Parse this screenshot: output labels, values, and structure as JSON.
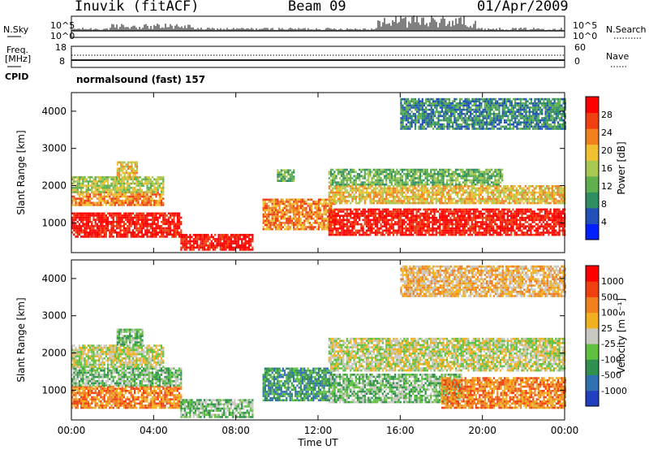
{
  "header": {
    "station": "Inuvik (fitACF)",
    "beam": "Beam 09",
    "date": "01/Apr/2009"
  },
  "top_panels": {
    "nsky_label": "N.Sky",
    "nsearch_label": "N.Search",
    "freq_label_line1": "Freq.",
    "freq_label_line2": "[MHz]",
    "nave_label": "Nave",
    "cpid_label": "CPID",
    "program": "normalsound (fast) 157",
    "noise_ticks_left": [
      "10^5",
      "10^0"
    ],
    "noise_ticks_right": [
      "10^5",
      "10^0"
    ],
    "freq_ticks": [
      "18",
      "8"
    ],
    "nave_ticks": [
      "60",
      "0"
    ]
  },
  "chart_data": [
    {
      "type": "heatmap",
      "title": "",
      "xlabel": "Time UT",
      "ylabel": "Slant Range [km]",
      "x_ticks": [
        "00:00",
        "04:00",
        "08:00",
        "12:00",
        "16:00",
        "20:00",
        "00:00"
      ],
      "y_ticks": [
        1000,
        2000,
        3000,
        4000
      ],
      "xlim_hours": [
        0,
        24
      ],
      "ylim_km": [
        200,
        4500
      ],
      "colorbar": {
        "label": "Power [dB]",
        "tick_labels": [
          "28",
          "24",
          "20",
          "16",
          "12",
          "8",
          "4"
        ],
        "colors": [
          "#0020ff",
          "#2050b8",
          "#2f8f60",
          "#60b050",
          "#a8c850",
          "#f0c030",
          "#f08020",
          "#f04010",
          "#ff0000"
        ]
      },
      "regions": [
        {
          "t0": 0.0,
          "t1": 5.3,
          "r0": 600,
          "r1": 1250,
          "level": 8
        },
        {
          "t0": 0.0,
          "t1": 4.5,
          "r0": 1450,
          "r1": 1800,
          "level": 6
        },
        {
          "t0": 0.0,
          "t1": 4.5,
          "r0": 1800,
          "r1": 2200,
          "level": 4
        },
        {
          "t0": 2.2,
          "t1": 3.2,
          "r0": 2200,
          "r1": 2650,
          "level": 5
        },
        {
          "t0": 5.3,
          "t1": 8.8,
          "r0": 250,
          "r1": 700,
          "level": 8
        },
        {
          "t0": 9.3,
          "t1": 12.8,
          "r0": 800,
          "r1": 1600,
          "level": 6
        },
        {
          "t0": 10.0,
          "t1": 10.8,
          "r0": 2100,
          "r1": 2400,
          "level": 3
        },
        {
          "t0": 12.5,
          "t1": 24.0,
          "r0": 650,
          "r1": 1350,
          "level": 8
        },
        {
          "t0": 12.5,
          "t1": 24.0,
          "r0": 1500,
          "r1": 2000,
          "level": 5
        },
        {
          "t0": 12.5,
          "t1": 21.0,
          "r0": 2000,
          "r1": 2400,
          "level": 3
        },
        {
          "t0": 16.0,
          "t1": 24.0,
          "r0": 3500,
          "r1": 4300,
          "level": 2
        }
      ]
    },
    {
      "type": "heatmap",
      "title": "",
      "xlabel": "Time UT",
      "ylabel": "Slant Range [km]",
      "x_ticks": [
        "00:00",
        "04:00",
        "08:00",
        "12:00",
        "16:00",
        "20:00",
        "00:00"
      ],
      "y_ticks": [
        1000,
        2000,
        3000,
        4000
      ],
      "xlim_hours": [
        0,
        24
      ],
      "ylim_km": [
        200,
        4500
      ],
      "colorbar": {
        "label": "Velocity [m s⁻¹]",
        "tick_labels": [
          "1000",
          "500",
          "100",
          "25",
          "-25",
          "-100",
          "-500",
          "-1000"
        ],
        "colors": [
          "#2040c0",
          "#3070b0",
          "#309050",
          "#60c040",
          "#c8c8c0",
          "#f0b020",
          "#f08020",
          "#f04010",
          "#ff0000"
        ]
      },
      "regions": [
        {
          "t0": 0.0,
          "t1": 5.3,
          "r0": 500,
          "r1": 1100,
          "level": 6
        },
        {
          "t0": 0.0,
          "t1": 5.3,
          "r0": 1100,
          "r1": 1600,
          "level": 3
        },
        {
          "t0": 0.0,
          "t1": 4.5,
          "r0": 1600,
          "r1": 2200,
          "level": 4
        },
        {
          "t0": 2.2,
          "t1": 3.5,
          "r0": 2200,
          "r1": 2650,
          "level": 3
        },
        {
          "t0": 5.3,
          "t1": 8.8,
          "r0": 250,
          "r1": 750,
          "level": 3
        },
        {
          "t0": 9.3,
          "t1": 12.8,
          "r0": 700,
          "r1": 1600,
          "level": 2
        },
        {
          "t0": 12.5,
          "t1": 19.0,
          "r0": 650,
          "r1": 1400,
          "level": 3
        },
        {
          "t0": 18.0,
          "t1": 24.0,
          "r0": 500,
          "r1": 1300,
          "level": 6
        },
        {
          "t0": 12.5,
          "t1": 24.0,
          "r0": 1500,
          "r1": 2400,
          "level": 4
        },
        {
          "t0": 16.0,
          "t1": 24.0,
          "r0": 3500,
          "r1": 4300,
          "level": 5
        }
      ]
    }
  ]
}
